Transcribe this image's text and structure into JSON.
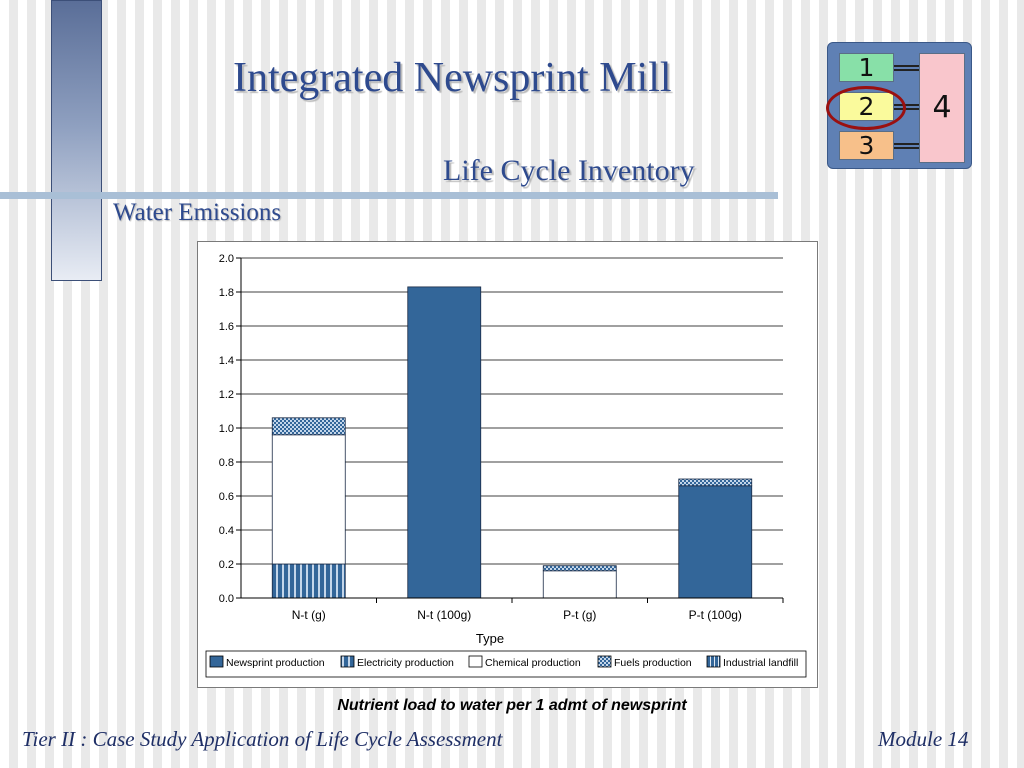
{
  "slide": {
    "title": "Integrated Newsprint Mill",
    "subtitle": "Life Cycle Inventory",
    "section": "Water Emissions",
    "caption": "Nutrient load to water per 1 admt of newsprint",
    "footer_left": "Tier II : Case Study Application of Life Cycle Assessment",
    "footer_right": "Module 14"
  },
  "module_map": {
    "boxes": [
      {
        "label": "1",
        "color": "#88e0a8"
      },
      {
        "label": "2",
        "color": "#fafa9c"
      },
      {
        "label": "3",
        "color": "#f7c08a"
      },
      {
        "label": "4",
        "color": "#f9c6cc"
      }
    ],
    "highlighted": "2",
    "highlight_color": "#9a1010",
    "background_color": "#5f80b4"
  },
  "chart_data": {
    "type": "bar",
    "stacked": true,
    "xlabel": "Type",
    "ylabel": "",
    "ylim": [
      0,
      2.0
    ],
    "y_ticks": [
      "0.0",
      "0.2",
      "0.4",
      "0.6",
      "0.8",
      "1.0",
      "1.2",
      "1.4",
      "1.6",
      "1.8",
      "2.0"
    ],
    "grid": true,
    "legend_position": "bottom",
    "categories": [
      "N-t (g)",
      "N-t (100g)",
      "P-t (g)",
      "P-t (100g)"
    ],
    "series": [
      {
        "name": "Newsprint production",
        "values": [
          0.0,
          1.83,
          0.0,
          0.66
        ],
        "color": "#336699",
        "pattern": "solid"
      },
      {
        "name": "Electricity production",
        "values": [
          0.2,
          0.0,
          0.0,
          0.0
        ],
        "color": "#336699",
        "pattern": "vertical-stripes"
      },
      {
        "name": "Chemical production",
        "values": [
          0.76,
          0.0,
          0.16,
          0.0
        ],
        "color": "#ffffff",
        "pattern": "none"
      },
      {
        "name": "Fuels production",
        "values": [
          0.1,
          0.0,
          0.03,
          0.04
        ],
        "color": "#336699",
        "pattern": "checker"
      },
      {
        "name": "Industrial landfill",
        "values": [
          0.0,
          0.0,
          0.0,
          0.0
        ],
        "color": "#336699",
        "pattern": "fine-stripes"
      }
    ]
  }
}
